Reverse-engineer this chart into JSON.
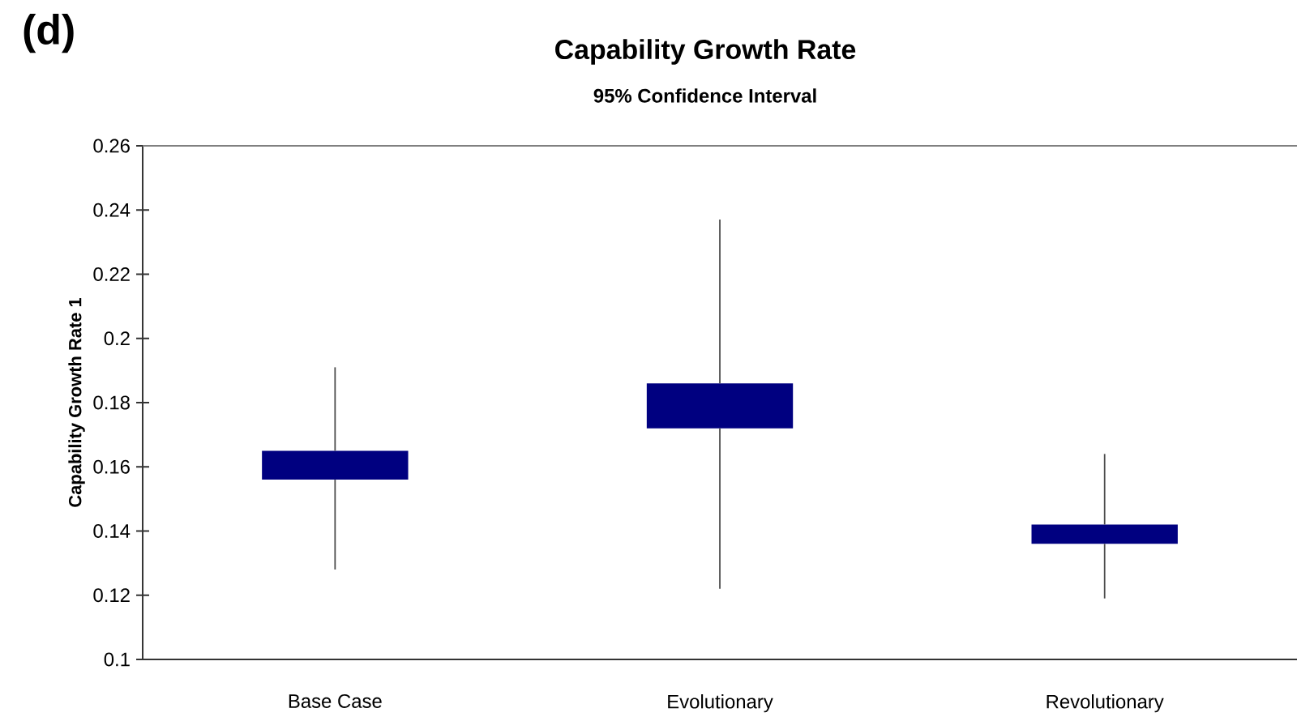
{
  "chart_data": {
    "type": "candlestick",
    "title": "Capability Growth Rate",
    "subtitle": "95% Confidence Interval",
    "ylabel": "Capability Growth Rate 1",
    "annotations": [
      "(d)"
    ],
    "categories": [
      "Base Case",
      "Evolutionary",
      "Revolutionary"
    ],
    "ohlc": [
      [
        0.156,
        0.191,
        0.128,
        0.165
      ],
      [
        0.172,
        0.237,
        0.122,
        0.186
      ],
      [
        0.136,
        0.164,
        0.119,
        0.142
      ]
    ],
    "color": "#000080",
    "ylim": [
      0.1,
      0.26
    ],
    "yticks": [
      0.1,
      0.12,
      0.14,
      0.16,
      0.18,
      0.2,
      0.22,
      0.24,
      0.26
    ]
  }
}
